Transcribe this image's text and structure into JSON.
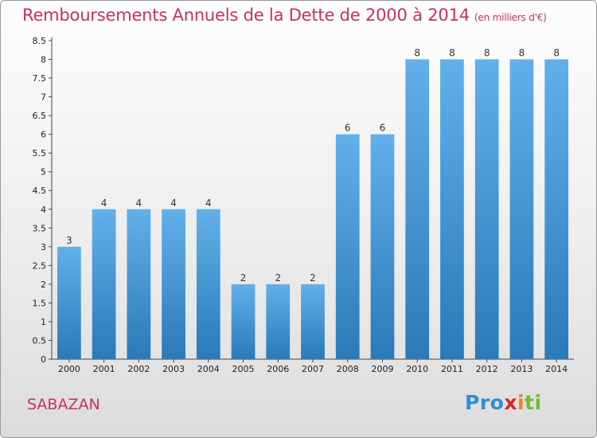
{
  "chart_data": {
    "type": "bar",
    "title": "Remboursements Annuels de la Dette de 2000 à 2014",
    "unit": "(en milliers d'€)",
    "categories": [
      "2000",
      "2001",
      "2002",
      "2003",
      "2004",
      "2005",
      "2006",
      "2007",
      "2008",
      "2009",
      "2010",
      "2011",
      "2012",
      "2013",
      "2014"
    ],
    "values": [
      3,
      4,
      4,
      4,
      4,
      2,
      2,
      2,
      6,
      6,
      8,
      8,
      8,
      8,
      8
    ],
    "data_labels": [
      "3",
      "4",
      "4",
      "4",
      "4",
      "2",
      "2",
      "2",
      "6",
      "6",
      "8",
      "8",
      "8",
      "8",
      "8"
    ],
    "y_ticks": [
      "0",
      "0.5",
      "1",
      "1.5",
      "2",
      "2.5",
      "3",
      "3.5",
      "4",
      "4.5",
      "5",
      "5.5",
      "6",
      "6.5",
      "7",
      "7.5",
      "8",
      "8.5"
    ],
    "ylim": [
      0,
      8.5
    ],
    "xlabel": "",
    "ylabel": "",
    "grid": false
  },
  "footer": {
    "commune": "SABAZAN",
    "logo_text": "Proxiti"
  },
  "colors": {
    "bar_top": "#62b0ea",
    "bar_bottom": "#2a7ab9",
    "title": "#c8325a"
  }
}
